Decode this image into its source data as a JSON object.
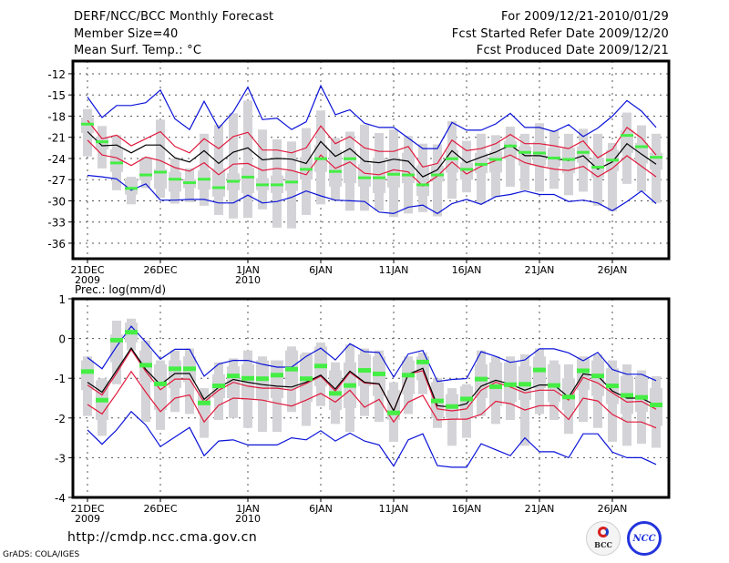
{
  "header": {
    "title": "DERF/NCC/BCC Monthly Forecast",
    "member_size": "Member Size=40",
    "variable_top": "Mean Surf. Temp.: °C",
    "period": "For 2009/12/21-2010/01/29",
    "start_date": "Fcst Started Refer Date 2009/12/20",
    "produced_date": "Fcst Produced Date 2009/12/21"
  },
  "footer": {
    "url": "http://cmdp.ncc.cma.gov.cn",
    "grads": "GrADS: COLA/IGES",
    "logo_bcc": "BCC",
    "logo_ncc": "NCC"
  },
  "colors": {
    "mean": "#000000",
    "inner_band": "#e0193c",
    "outer_band": "#0a12d8",
    "median": "#44ee44",
    "spread": "#d4d4d8",
    "grid": "#555555"
  },
  "chart_data": [
    {
      "type": "line",
      "title": "Mean Surf. Temp.: °C",
      "ylabel": "°C",
      "ylim": [
        -38.5,
        -10.5
      ],
      "yticks": [
        -12,
        -15,
        -18,
        -21,
        -24,
        -27,
        -30,
        -33,
        -36
      ],
      "ytick_labels": [
        "-12",
        "-15",
        "-18",
        "-21",
        "-24",
        "-27",
        "-30",
        "-33",
        "-36"
      ],
      "x_days": 40,
      "xticks": [
        0,
        5,
        11,
        16,
        21,
        26,
        31,
        36
      ],
      "xtick_labels": [
        "21DEC",
        "26DEC",
        "1JAN",
        "6JAN",
        "11JAN",
        "16JAN",
        "21JAN",
        "26JAN"
      ],
      "xtick_sublabels": [
        "2009",
        "",
        "2010",
        "",
        "",
        "",
        "",
        ""
      ],
      "grid": true,
      "series": [
        {
          "name": "outer-upper",
          "values": [
            -15.3,
            -18.2,
            -16.5,
            -16.5,
            -16.1,
            -14.3,
            -18.4,
            -19.9,
            -15.9,
            -19.7,
            -17.4,
            -13.9,
            -18.5,
            -18.3,
            -19.9,
            -18.8,
            -13.7,
            -17.8,
            -17.1,
            -19,
            -19.6,
            -19.6,
            -21.1,
            -22.6,
            -22.6,
            -18.9,
            -20,
            -20,
            -19.1,
            -17.6,
            -19.6,
            -19.6,
            -20.2,
            -19.2,
            -20.9,
            -19.7,
            -18,
            -15.8,
            -17.3,
            -19.6
          ]
        },
        {
          "name": "inner-upper",
          "values": [
            -18.6,
            -21.2,
            -20.7,
            -22.2,
            -21.2,
            -20.2,
            -22.3,
            -23.2,
            -21.2,
            -22.6,
            -20.9,
            -20.3,
            -22.8,
            -22.8,
            -23.2,
            -22.5,
            -19.4,
            -21.9,
            -20.9,
            -22.5,
            -23,
            -23,
            -22.3,
            -25.2,
            -24.7,
            -21.4,
            -22.9,
            -22.6,
            -21.9,
            -20.6,
            -21.9,
            -21.9,
            -22.2,
            -22.6,
            -21.5,
            -23.9,
            -22.7,
            -19.6,
            -21.1,
            -23.5
          ]
        },
        {
          "name": "mean",
          "values": [
            -20.2,
            -22.2,
            -22.1,
            -23.2,
            -22.1,
            -22.1,
            -23.9,
            -24.5,
            -22.9,
            -24.7,
            -23.1,
            -22.5,
            -24.2,
            -24,
            -24.1,
            -24.7,
            -21.6,
            -23.7,
            -22.6,
            -24.4,
            -24.6,
            -24.1,
            -24.4,
            -26.6,
            -25.6,
            -22.9,
            -24.6,
            -23.8,
            -23.1,
            -22.1,
            -23.6,
            -23.6,
            -24,
            -24.3,
            -23.6,
            -25.5,
            -24.5,
            -21.9,
            -23.4,
            -24.8
          ]
        },
        {
          "name": "inner-lower",
          "values": [
            -21.4,
            -23.5,
            -23.9,
            -25,
            -23.8,
            -24.3,
            -25.3,
            -25.8,
            -24.6,
            -26.3,
            -24.8,
            -24.7,
            -25.7,
            -25.4,
            -25.7,
            -26.3,
            -23.5,
            -25.4,
            -24.5,
            -26.1,
            -26.3,
            -25.6,
            -25.9,
            -27.9,
            -26.5,
            -24.5,
            -26.2,
            -25.1,
            -24.3,
            -23.5,
            -24.6,
            -25.1,
            -25.5,
            -25.7,
            -25.1,
            -26.6,
            -25.4,
            -23.6,
            -25.1,
            -26.6
          ]
        },
        {
          "name": "outer-lower",
          "values": [
            -26.4,
            -26.6,
            -26.9,
            -28.5,
            -27.6,
            -29.9,
            -29.9,
            -29.8,
            -29.8,
            -30.3,
            -30.3,
            -29.2,
            -30.3,
            -30.1,
            -29.5,
            -28.6,
            -29.3,
            -29.9,
            -30,
            -30.1,
            -31.6,
            -31.8,
            -30.9,
            -30.6,
            -31.8,
            -30.4,
            -29.8,
            -30.5,
            -29.4,
            -29.1,
            -28.6,
            -29.1,
            -29.1,
            -30.1,
            -29.9,
            -30.3,
            -31.4,
            -30.1,
            -28.6,
            -30.4
          ]
        },
        {
          "name": "median",
          "values": [
            -19.2,
            -21.7,
            -24.7,
            -28.3,
            -26.4,
            -26,
            -27,
            -27.5,
            -27,
            -28.2,
            -27.3,
            -26.7,
            -27.8,
            -27.8,
            -27.4,
            -25.6,
            -24.1,
            -25.9,
            -24.1,
            -26.8,
            -26.8,
            -26.3,
            -26.4,
            -27.8,
            -26.4,
            -24.1,
            -25.6,
            -24.9,
            -24.2,
            -22.3,
            -23.2,
            -23.3,
            -24,
            -24.2,
            -23.2,
            -25.3,
            -24.3,
            -20.8,
            -22.4,
            -23.9
          ]
        },
        {
          "name": "inner-range-top",
          "values": [
            -18.2,
            -20.9,
            -22.7,
            -26.8,
            -24.1,
            -25.5,
            -25.9,
            -26.9,
            -25.7,
            -25.4,
            -26.1,
            -25.3,
            -26.8,
            -26.4,
            -25.8,
            -23.8,
            -22.1,
            -22.8,
            -22.8,
            -24.8,
            -23.9,
            -23.9,
            -23.2,
            -25,
            -25,
            -22.8,
            -24.6,
            -23.2,
            -23,
            -21.5,
            -22.3,
            -21.6,
            -22.5,
            -22.5,
            -22.3,
            -23.9,
            -22.8,
            -20,
            -21.8,
            -23.2
          ]
        },
        {
          "name": "inner-range-bottom",
          "values": [
            -20.4,
            -22.7,
            -25.9,
            -29.1,
            -27.1,
            -28.3,
            -28.7,
            -28.2,
            -28.4,
            -29.4,
            -28.5,
            -28.9,
            -28.5,
            -28.9,
            -28.6,
            -27,
            -25.9,
            -28,
            -27.5,
            -28,
            -28.9,
            -28.1,
            -27.5,
            -29.3,
            -27.3,
            -26,
            -27,
            -26.1,
            -26,
            -24.1,
            -25,
            -25,
            -25.2,
            -26.1,
            -24.6,
            -26.7,
            -25.8,
            -23.2,
            -24.7,
            -25.6
          ]
        },
        {
          "name": "outer-range-top",
          "values": [
            -17,
            -19.4,
            -20.7,
            -26.6,
            -23.8,
            -18.5,
            -24,
            -25.4,
            -20.5,
            -19.2,
            -17.6,
            -15.8,
            -19.9,
            -21.3,
            -21.6,
            -19.7,
            -17.2,
            -21.1,
            -20.2,
            -19.2,
            -20.4,
            -19.9,
            -20.8,
            -21.9,
            -22,
            -18.7,
            -21.5,
            -20.5,
            -20.7,
            -19.5,
            -20.5,
            -19,
            -20,
            -20.5,
            -19.8,
            -20.5,
            -21.8,
            -17.5,
            -19.3,
            -20.5
          ]
        },
        {
          "name": "outer-range-bottom",
          "values": [
            -23.7,
            -25.4,
            -28.5,
            -30.5,
            -28.2,
            -29.6,
            -30.4,
            -30.2,
            -30.7,
            -32,
            -32.5,
            -32.4,
            -31.2,
            -33.8,
            -33.9,
            -32,
            -30.5,
            -30,
            -31.4,
            -31.4,
            -31.4,
            -32.3,
            -31.8,
            -31.6,
            -32.2,
            -29.7,
            -28.8,
            -30.4,
            -29.5,
            -28,
            -28.5,
            -28.7,
            -28.3,
            -29.2,
            -28.7,
            -30.7,
            -31.5,
            -27.6,
            -28.7,
            -30.3
          ]
        }
      ]
    },
    {
      "type": "line",
      "title": "Prec.: log(mm/d)",
      "ylabel": "log(mm/d)",
      "ylim": [
        -4,
        1
      ],
      "yticks": [
        1,
        0,
        -1,
        -2,
        -3,
        -4
      ],
      "ytick_labels": [
        "1",
        "0",
        "-1",
        "-2",
        "-3",
        "-4"
      ],
      "x_days": 40,
      "xticks": [
        0,
        5,
        11,
        16,
        21,
        26,
        31,
        36
      ],
      "xtick_labels": [
        "21DEC",
        "26DEC",
        "1JAN",
        "6JAN",
        "11JAN",
        "16JAN",
        "21JAN",
        "26JAN"
      ],
      "xtick_sublabels": [
        "2009",
        "",
        "2010",
        "",
        "",
        "",
        "",
        ""
      ],
      "grid": true,
      "series": [
        {
          "name": "outer-upper",
          "values": [
            -0.48,
            -0.76,
            -0.2,
            0.31,
            -0.09,
            -0.52,
            -0.27,
            -0.27,
            -0.95,
            -0.64,
            -0.55,
            -0.55,
            -0.65,
            -0.72,
            -0.72,
            -0.45,
            -0.24,
            -0.54,
            -0.13,
            -0.33,
            -0.35,
            -0.97,
            -0.39,
            -0.3,
            -1.08,
            -1.03,
            -1.01,
            -0.33,
            -0.45,
            -0.6,
            -0.54,
            -0.26,
            -0.26,
            -0.36,
            -0.56,
            -0.35,
            -0.78,
            -0.9,
            -0.9,
            -1.06
          ]
        },
        {
          "name": "inner-upper",
          "values": [
            -1.17,
            -1.42,
            -0.87,
            -0.28,
            -0.83,
            -1.29,
            -1.02,
            -1.02,
            -1.6,
            -1.3,
            -1.1,
            -1.2,
            -1.25,
            -1.25,
            -1.3,
            -1.13,
            -0.95,
            -1.32,
            -0.85,
            -1.12,
            -1.15,
            -1.82,
            -0.9,
            -0.81,
            -1.77,
            -1.82,
            -1.77,
            -1.3,
            -1.1,
            -1.22,
            -1.37,
            -1.3,
            -1.3,
            -1.55,
            -0.98,
            -1.12,
            -1.37,
            -1.6,
            -1.58,
            -1.78
          ]
        },
        {
          "name": "mean",
          "values": [
            -1.1,
            -1.35,
            -0.8,
            -0.24,
            -0.78,
            -1.16,
            -0.88,
            -0.88,
            -1.53,
            -1.23,
            -1.03,
            -1.1,
            -1.16,
            -1.2,
            -1.22,
            -1.1,
            -0.92,
            -1.27,
            -0.82,
            -1.1,
            -1.14,
            -1.82,
            -0.9,
            -0.75,
            -1.69,
            -1.73,
            -1.64,
            -1.2,
            -1.05,
            -1.15,
            -1.3,
            -1.17,
            -1.17,
            -1.48,
            -0.89,
            -0.94,
            -1.32,
            -1.5,
            -1.5,
            -1.69
          ]
        },
        {
          "name": "inner-lower",
          "values": [
            -1.66,
            -1.9,
            -1.38,
            -0.83,
            -1.35,
            -1.84,
            -1.5,
            -1.42,
            -2.1,
            -1.68,
            -1.5,
            -1.52,
            -1.55,
            -1.63,
            -1.7,
            -1.55,
            -1.38,
            -1.6,
            -1.3,
            -1.73,
            -1.53,
            -2.1,
            -1.6,
            -1.43,
            -2.05,
            -2.03,
            -2.03,
            -1.91,
            -1.58,
            -1.64,
            -1.8,
            -1.69,
            -1.69,
            -2.04,
            -1.5,
            -1.57,
            -1.91,
            -2.1,
            -2.1,
            -2.25
          ]
        },
        {
          "name": "outer-lower",
          "values": [
            -2.3,
            -2.66,
            -2.3,
            -1.84,
            -2.18,
            -2.72,
            -2.48,
            -2.24,
            -2.95,
            -2.58,
            -2.55,
            -2.68,
            -2.68,
            -2.68,
            -2.5,
            -2.55,
            -2.32,
            -2.58,
            -2.38,
            -2.58,
            -2.68,
            -3.21,
            -2.55,
            -2.4,
            -3.2,
            -3.24,
            -3.24,
            -2.65,
            -2.8,
            -2.95,
            -2.5,
            -2.85,
            -2.85,
            -3.0,
            -2.4,
            -2.4,
            -2.86,
            -3.0,
            -3.0,
            -3.17
          ]
        },
        {
          "name": "median",
          "values": [
            -0.82,
            -1.54,
            -0.03,
            0.17,
            -0.66,
            -1.13,
            -0.75,
            -0.75,
            -1.61,
            -1.18,
            -0.93,
            -0.99,
            -1.0,
            -0.91,
            -0.76,
            -1.0,
            -0.68,
            -1.37,
            -1.17,
            -0.79,
            -0.88,
            -1.86,
            -0.91,
            -0.58,
            -1.56,
            -1.7,
            -1.51,
            -1.01,
            -1.2,
            -1.15,
            -1.14,
            -0.78,
            -1.17,
            -1.46,
            -0.8,
            -0.93,
            -1.18,
            -1.42,
            -1.47,
            -1.66
          ]
        },
        {
          "name": "inner-range-top",
          "values": [
            -0.55,
            -1.05,
            0.1,
            0.4,
            -0.3,
            -0.65,
            -0.55,
            -0.45,
            -1.4,
            -0.9,
            -0.7,
            -0.65,
            -0.55,
            -0.55,
            -0.3,
            -0.4,
            -0.2,
            -0.8,
            -0.6,
            -0.4,
            -0.45,
            -1.3,
            -0.55,
            -0.45,
            -1.1,
            -1.4,
            -1.2,
            -0.65,
            -0.6,
            -0.6,
            -0.7,
            -0.45,
            -0.65,
            -1.0,
            -0.5,
            -0.55,
            -0.75,
            -0.95,
            -0.95,
            -1.25
          ]
        },
        {
          "name": "inner-range-bottom",
          "values": [
            -1.3,
            -2.05,
            -0.6,
            -0.1,
            -1.1,
            -1.8,
            -1.25,
            -1.1,
            -1.9,
            -1.5,
            -1.5,
            -1.55,
            -1.55,
            -1.5,
            -1.25,
            -1.6,
            -1.2,
            -1.8,
            -1.75,
            -1.2,
            -1.45,
            -2.05,
            -1.4,
            -1.05,
            -2.0,
            -2.0,
            -2.0,
            -1.5,
            -1.7,
            -1.6,
            -1.55,
            -1.25,
            -1.6,
            -1.8,
            -1.3,
            -1.45,
            -1.65,
            -1.9,
            -1.85,
            -2.2
          ]
        },
        {
          "name": "outer-range-top",
          "values": [
            -0.45,
            -1.0,
            0.45,
            0.5,
            -0.05,
            -0.55,
            -0.3,
            -0.25,
            -1.25,
            -0.6,
            -0.5,
            -0.3,
            -0.45,
            -0.55,
            -0.2,
            -0.35,
            -0.1,
            -0.6,
            -0.15,
            -0.25,
            -0.3,
            -1.1,
            -0.45,
            -0.35,
            -1.0,
            -1.25,
            -1.15,
            -0.3,
            -0.45,
            -0.45,
            -0.4,
            -0.25,
            -0.55,
            -0.65,
            -0.45,
            -0.4,
            -0.55,
            -0.65,
            -0.8,
            -0.95
          ]
        },
        {
          "name": "outer-range-bottom",
          "values": [
            -1.95,
            -2.45,
            -1.15,
            -0.3,
            -2.1,
            -2.3,
            -1.85,
            -1.9,
            -2.5,
            -2.05,
            -2.0,
            -2.25,
            -2.35,
            -2.35,
            -1.85,
            -2.2,
            -1.7,
            -2.15,
            -2.35,
            -1.95,
            -2.1,
            -2.6,
            -1.9,
            -1.4,
            -2.25,
            -2.7,
            -2.5,
            -1.95,
            -2.15,
            -2.05,
            -2.7,
            -1.9,
            -2.05,
            -2.4,
            -2.1,
            -2.25,
            -2.6,
            -2.7,
            -2.65,
            -2.75
          ]
        }
      ]
    }
  ]
}
